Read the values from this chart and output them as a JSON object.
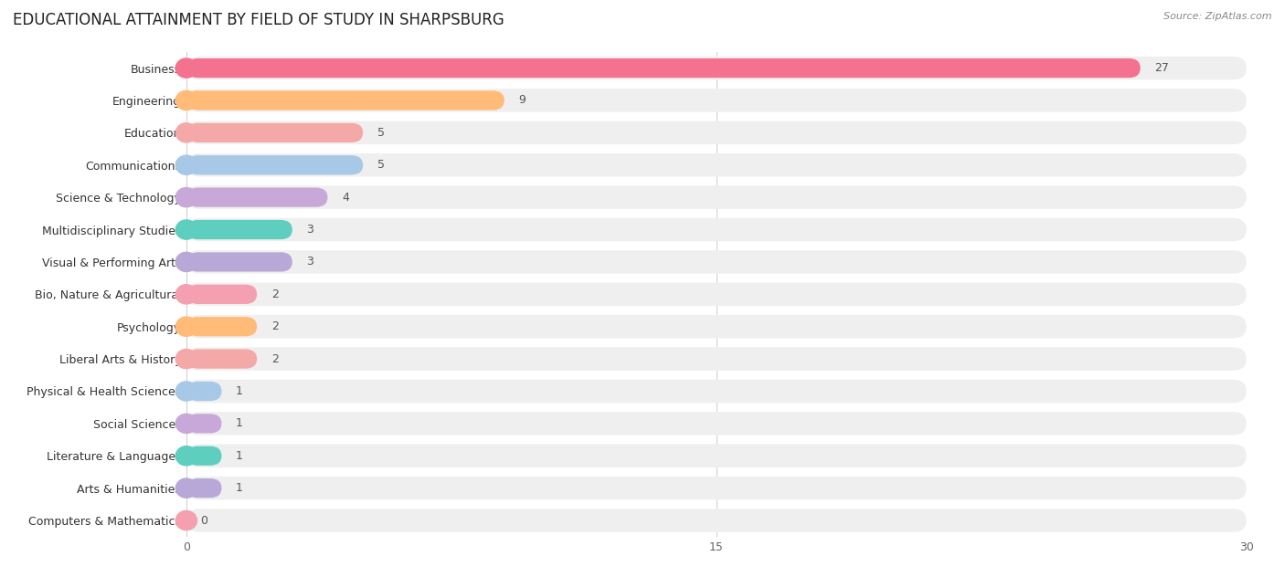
{
  "title": "EDUCATIONAL ATTAINMENT BY FIELD OF STUDY IN SHARPSBURG",
  "source": "Source: ZipAtlas.com",
  "categories": [
    "Business",
    "Engineering",
    "Education",
    "Communications",
    "Science & Technology",
    "Multidisciplinary Studies",
    "Visual & Performing Arts",
    "Bio, Nature & Agricultural",
    "Psychology",
    "Liberal Arts & History",
    "Physical & Health Sciences",
    "Social Sciences",
    "Literature & Languages",
    "Arts & Humanities",
    "Computers & Mathematics"
  ],
  "values": [
    27,
    9,
    5,
    5,
    4,
    3,
    3,
    2,
    2,
    2,
    1,
    1,
    1,
    1,
    0
  ],
  "bar_colors": [
    "#F4718F",
    "#FFBB77",
    "#F4A9A8",
    "#A8C8E8",
    "#C8A8D8",
    "#5ECFBF",
    "#B8A8D8",
    "#F4A0B0",
    "#FFBB77",
    "#F4A9A8",
    "#A8C8E8",
    "#C8A8D8",
    "#5ECFBF",
    "#B8A8D8",
    "#F4A0B0"
  ],
  "xlim": [
    0,
    30
  ],
  "xticks": [
    0,
    15,
    30
  ],
  "background_color": "#ffffff",
  "bar_background_color": "#EFEFEF",
  "title_fontsize": 12,
  "label_fontsize": 9,
  "value_fontsize": 9
}
